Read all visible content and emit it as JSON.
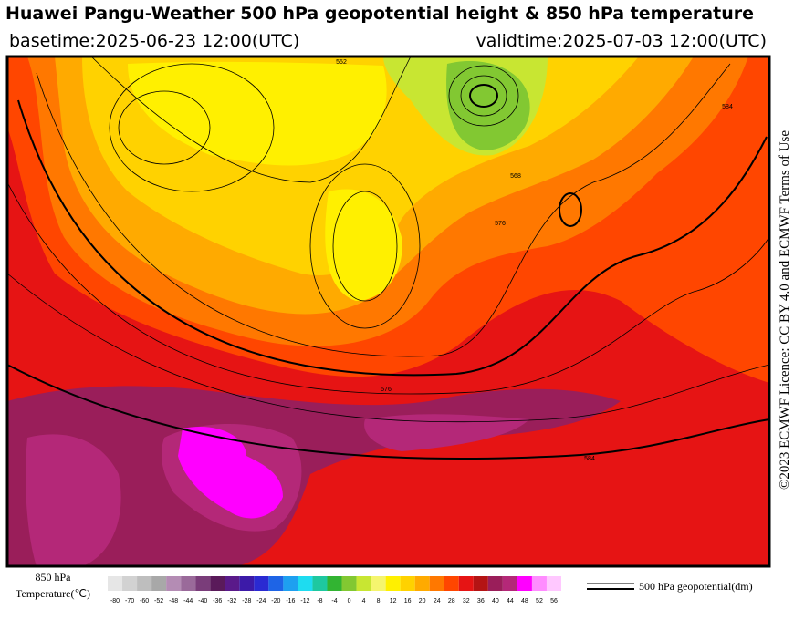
{
  "header": {
    "title": "Huawei Pangu-Weather 500 hPa geopotential height & 850 hPa temperature",
    "basetime": "basetime:2025-06-23 12:00(UTC)",
    "validtime": "validtime:2025-07-03 12:00(UTC)"
  },
  "credit": "©2023 ECMWF Licence: CC BY 4.0 and ECMWF Terms of Use",
  "map": {
    "contour_labels": [
      "552",
      "576",
      "584",
      "584",
      "576",
      "568"
    ]
  },
  "legend": {
    "temperature_label": [
      "850 hPa",
      "Temperature(℃)"
    ],
    "colorbar": {
      "ticks": [
        -80,
        -70,
        -60,
        -52,
        -48,
        -44,
        -40,
        -36,
        -32,
        -28,
        -24,
        -20,
        -16,
        -12,
        -8,
        -4,
        0,
        4,
        8,
        12,
        16,
        20,
        24,
        28,
        32,
        36,
        40,
        44,
        48,
        52,
        56
      ],
      "colors": [
        "#e6e6e6",
        "#d2d2d2",
        "#bebebe",
        "#a8a8a8",
        "#b48cb4",
        "#9a6a9a",
        "#7a3d7a",
        "#5a1a5a",
        "#5a1a8a",
        "#3c1aa8",
        "#2a2ad2",
        "#1e64e6",
        "#1ea0f0",
        "#1edcf0",
        "#1ec8a0",
        "#32b432",
        "#82c832",
        "#c8e632",
        "#f5f56e",
        "#fff000",
        "#ffd200",
        "#ffaa00",
        "#ff7800",
        "#ff4600",
        "#e61414",
        "#b41414",
        "#9a1e5a",
        "#b42878",
        "#ff00ff",
        "#ff8cff",
        "#ffc8ff"
      ]
    },
    "contour_label": "500 hPa geopotential(dm)"
  }
}
